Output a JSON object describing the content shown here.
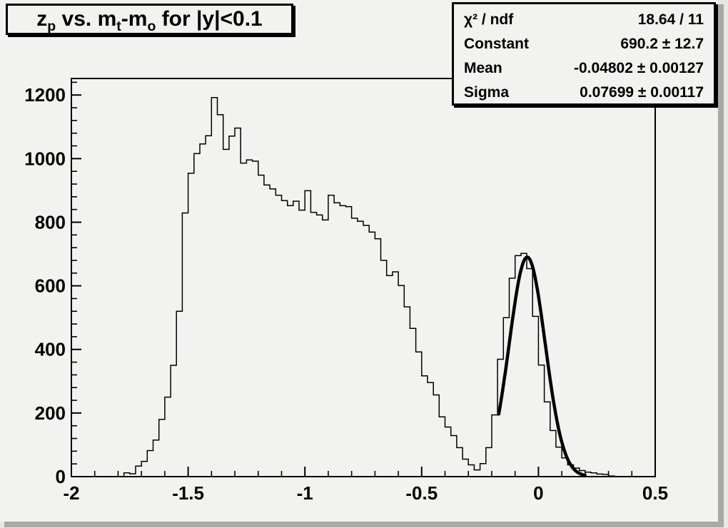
{
  "page": {
    "canvas_bg": "#f2f2f0",
    "bevel_color": "#a9a9a7",
    "line_color": "#000000"
  },
  "title": {
    "text": "z_p vs. m_t-m_o for |y|<0.1",
    "runs": [
      {
        "t": "z"
      },
      {
        "t": "p",
        "sub": true
      },
      {
        "t": " vs. m"
      },
      {
        "t": "t",
        "sub": true
      },
      {
        "t": "-m"
      },
      {
        "t": "o",
        "sub": true
      },
      {
        "t": " for |y|<0.1"
      }
    ]
  },
  "stats": {
    "rows": [
      {
        "label": "χ² / ndf",
        "value": "18.64 / 11"
      },
      {
        "label": "Constant",
        "value": "690.2 ± 12.7"
      },
      {
        "label": "Mean",
        "value": "-0.04802 ± 0.00127"
      },
      {
        "label": "Sigma",
        "value": "0.07699 ± 0.00117"
      }
    ]
  },
  "chart_data": {
    "type": "bar",
    "subtype": "histogram-step",
    "title": "z_p vs. m_t-m_o for |y|<0.1",
    "xlabel": "",
    "ylabel": "",
    "xlim": [
      -2,
      0.5
    ],
    "ylim": [
      0,
      1252
    ],
    "grid": false,
    "bin_start": -2,
    "bin_width": 0.025,
    "bins": [
      0,
      0,
      0,
      0,
      0,
      0,
      0,
      0,
      0,
      12,
      9,
      33,
      48,
      82,
      115,
      180,
      250,
      350,
      520,
      829,
      954,
      1016,
      1046,
      1072,
      1192,
      1138,
      1029,
      1071,
      1096,
      986,
      996,
      992,
      948,
      917,
      905,
      885,
      868,
      852,
      866,
      838,
      899,
      831,
      823,
      807,
      885,
      861,
      852,
      849,
      813,
      803,
      790,
      769,
      748,
      680,
      632,
      644,
      601,
      534,
      466,
      392,
      317,
      296,
      257,
      188,
      156,
      129,
      91,
      55,
      37,
      21,
      41,
      91,
      194,
      369,
      500,
      624,
      695,
      702,
      654,
      504,
      351,
      235,
      145,
      93,
      59,
      37,
      27,
      19,
      14,
      12,
      8,
      7,
      2,
      0,
      0,
      0,
      0,
      0,
      0,
      0
    ],
    "x_major_ticks": [
      {
        "v": -2,
        "label": "-2"
      },
      {
        "v": -1.5,
        "label": "-1.5"
      },
      {
        "v": -1,
        "label": "-1"
      },
      {
        "v": -0.5,
        "label": "-0.5"
      },
      {
        "v": 0,
        "label": "0"
      },
      {
        "v": 0.5,
        "label": "0.5"
      }
    ],
    "y_major_ticks": [
      {
        "v": 0,
        "label": "0"
      },
      {
        "v": 200,
        "label": "200"
      },
      {
        "v": 400,
        "label": "400"
      },
      {
        "v": 600,
        "label": "600"
      },
      {
        "v": 800,
        "label": "800"
      },
      {
        "v": 1000,
        "label": "1000"
      },
      {
        "v": 1200,
        "label": "1200"
      }
    ],
    "x_minor_step": 0.1,
    "y_minor_step": 40,
    "fit": {
      "type": "gaussian",
      "constant": 690.2,
      "mean": -0.04802,
      "sigma": 0.07699,
      "chi2": 18.64,
      "ndf": 11,
      "range": [
        -0.17,
        0.2
      ]
    }
  }
}
